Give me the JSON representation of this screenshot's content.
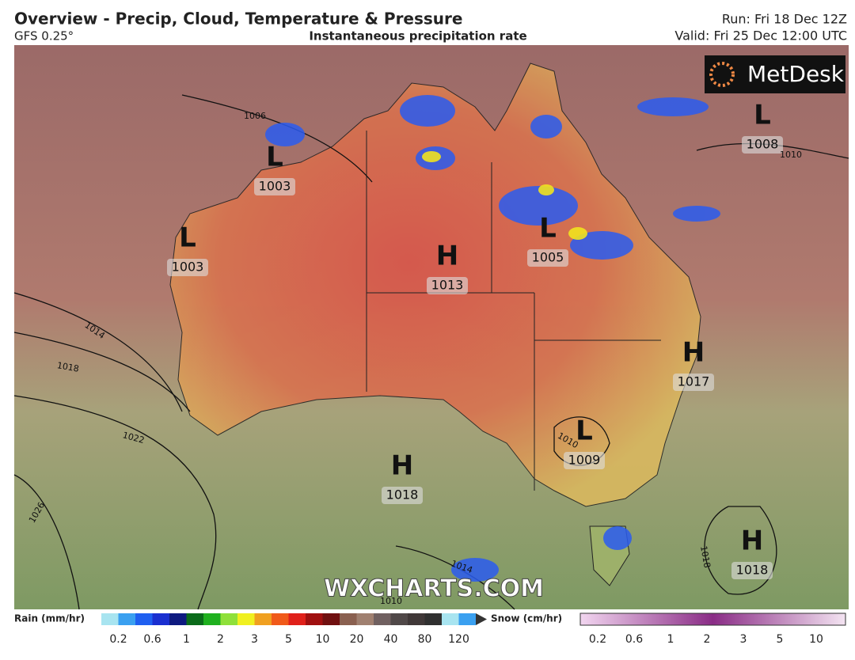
{
  "header": {
    "title": "Overview - Precip, Cloud, Temperature & Pressure",
    "model": "GFS 0.25°",
    "subtitle": "Instantaneous precipitation rate",
    "run": "Run: Fri 18 Dec 12Z",
    "valid": "Valid: Fri 25 Dec 12:00 UTC"
  },
  "logo": "MetDesk",
  "watermark": "WXCHARTS.COM",
  "pressure_systems": [
    {
      "letter": "L",
      "value": 1003
    },
    {
      "letter": "L",
      "value": 1003
    },
    {
      "letter": "H",
      "value": 1013
    },
    {
      "letter": "L",
      "value": 1005
    },
    {
      "letter": "L",
      "value": 1008
    },
    {
      "letter": "H",
      "value": 1017
    },
    {
      "letter": "L",
      "value": 1009
    },
    {
      "letter": "H",
      "value": 1018
    },
    {
      "letter": "H",
      "value": 1018
    }
  ],
  "isobar_labels": [
    1006,
    1014,
    1018,
    1022,
    1026,
    1014,
    1010,
    1018,
    1010,
    1010
  ],
  "legend": {
    "rain": {
      "title": "Rain (mm/hr)",
      "labels": [
        0.2,
        0.6,
        1,
        2,
        3,
        5,
        10,
        20,
        40,
        80,
        120
      ]
    },
    "snow": {
      "title": "Snow (cm/hr)",
      "labels": [
        0.2,
        0.6,
        1,
        2,
        3,
        5,
        10
      ]
    }
  }
}
